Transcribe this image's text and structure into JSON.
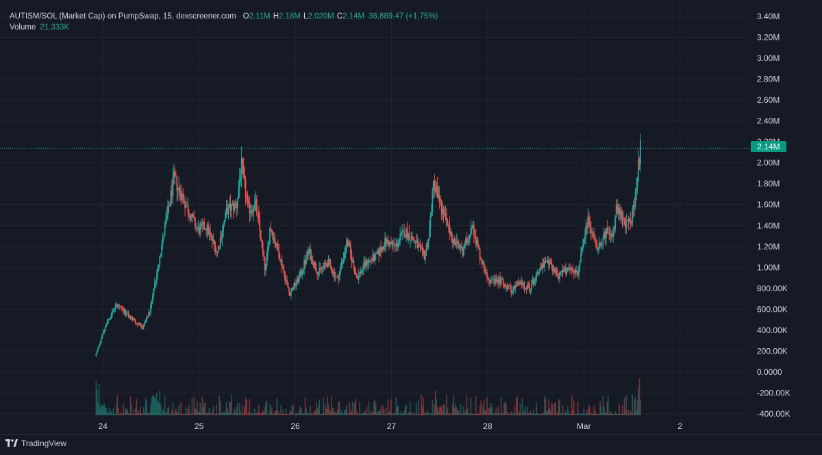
{
  "legend": {
    "title": "AUTISM/SOL (Market Cap) on PumpSwap, 15, dexscreener.com",
    "open_label": "O",
    "open_value": "2.11M",
    "high_label": "H",
    "high_value": "2.18M",
    "low_label": "L",
    "low_value": "2.020M",
    "close_label": "C",
    "close_value": "2.14M",
    "change": "36,889.47 (+1.75%)",
    "volume_label": "Volume",
    "volume_value": "21.333K"
  },
  "price_label": "2.14M",
  "footer": {
    "brand": "TradingView"
  },
  "colors": {
    "background": "#161a25",
    "up": "#26a69a",
    "down": "#ef5350",
    "grid": "#232632",
    "text": "#d1d4dc",
    "price_label_bg": "#089981"
  },
  "chart_data": {
    "type": "candlestick",
    "y_ticks": [
      "3.40M",
      "3.20M",
      "3.00M",
      "2.80M",
      "2.60M",
      "2.40M",
      "2.20M",
      "2.00M",
      "1.80M",
      "1.60M",
      "1.40M",
      "1.20M",
      "1.00M",
      "800.00K",
      "600.00K",
      "400.00K",
      "200.00K",
      "0.0000",
      "-200.00K",
      "-400.00K"
    ],
    "ylim": [
      -400000,
      3400000
    ],
    "x_ticks": [
      "24",
      "25",
      "26",
      "27",
      "28",
      "Mar",
      "2"
    ],
    "x_range_days": [
      23.5,
      30.8
    ],
    "last_price": 2140000,
    "price_path_days": [
      23.93,
      24.05,
      24.15,
      24.25,
      24.35,
      24.42,
      24.5,
      24.6,
      24.68,
      24.75,
      24.85,
      24.92,
      25.0,
      25.08,
      25.2,
      25.3,
      25.4,
      25.45,
      25.52,
      25.6,
      25.65,
      25.7,
      25.75,
      25.85,
      25.95,
      26.05,
      26.15,
      26.25,
      26.35,
      26.45,
      26.55,
      26.65,
      26.75,
      26.85,
      26.95,
      27.05,
      27.15,
      27.25,
      27.35,
      27.4,
      27.45,
      27.55,
      27.65,
      27.75,
      27.85,
      27.95,
      28.05,
      28.15,
      28.25,
      28.35,
      28.45,
      28.55,
      28.65,
      28.75,
      28.85,
      28.95,
      29.05,
      29.15,
      29.25,
      29.3,
      29.35,
      29.45,
      29.52,
      29.55,
      29.6
    ],
    "price_path_values": [
      150000,
      480000,
      640000,
      560000,
      480000,
      420000,
      580000,
      1100000,
      1500000,
      1850000,
      1650000,
      1500000,
      1350000,
      1400000,
      1150000,
      1550000,
      1600000,
      1980000,
      1550000,
      1600000,
      1300000,
      950000,
      1400000,
      1100000,
      750000,
      900000,
      1150000,
      950000,
      1050000,
      880000,
      1250000,
      900000,
      1050000,
      1100000,
      1250000,
      1200000,
      1350000,
      1250000,
      1100000,
      1300000,
      1820000,
      1520000,
      1250000,
      1150000,
      1400000,
      1050000,
      850000,
      880000,
      780000,
      850000,
      800000,
      1000000,
      1050000,
      920000,
      1000000,
      950000,
      1450000,
      1200000,
      1350000,
      1250000,
      1550000,
      1400000,
      1500000,
      1750000,
      2140000
    ],
    "candle_count": 540,
    "volume_panel": {
      "last_value": 21333
    }
  }
}
